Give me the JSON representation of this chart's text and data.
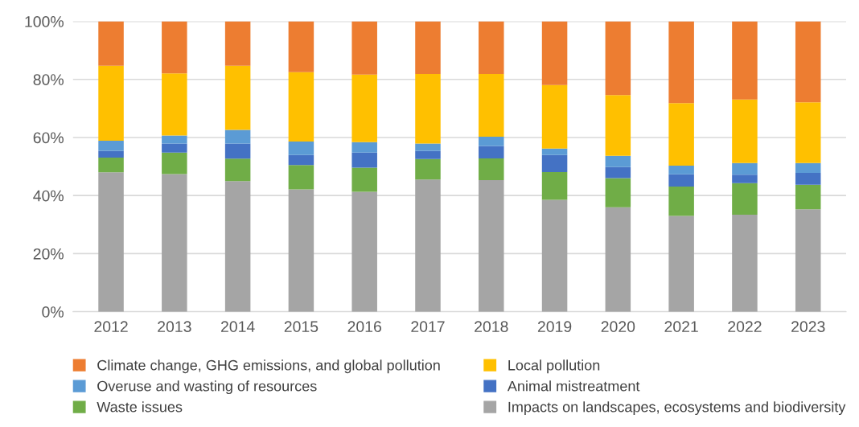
{
  "chart_data": {
    "type": "bar",
    "stacked": true,
    "categories": [
      "2012",
      "2013",
      "2014",
      "2015",
      "2016",
      "2017",
      "2018",
      "2019",
      "2020",
      "2021",
      "2022",
      "2023"
    ],
    "series": [
      {
        "name": "Impacts on landscapes, ecosystems and biodiversity",
        "color": "#a5a5a5",
        "values": [
          48.0,
          47.4,
          45.0,
          42.1,
          41.3,
          45.5,
          45.3,
          38.5,
          36.0,
          33.0,
          33.4,
          35.3
        ]
      },
      {
        "name": "Waste issues",
        "color": "#70ad47",
        "values": [
          5.1,
          7.4,
          7.7,
          8.4,
          8.3,
          7.1,
          7.5,
          9.6,
          10.0,
          10.1,
          10.9,
          8.4
        ]
      },
      {
        "name": "Animal mistreatment",
        "color": "#4472c4",
        "values": [
          2.3,
          3.1,
          5.2,
          3.5,
          5.2,
          2.8,
          4.3,
          5.9,
          3.8,
          4.2,
          2.9,
          4.1
        ]
      },
      {
        "name": "Overuse and wasting of resources",
        "color": "#5b9bd5",
        "values": [
          3.5,
          2.8,
          4.7,
          4.6,
          3.6,
          2.5,
          3.2,
          2.2,
          3.9,
          3.0,
          4.0,
          3.4
        ]
      },
      {
        "name": "Local pollution",
        "color": "#ffc000",
        "values": [
          25.8,
          21.4,
          22.1,
          23.9,
          23.3,
          24.0,
          21.6,
          21.9,
          20.9,
          21.5,
          21.9,
          20.9
        ]
      },
      {
        "name": "Climate change, GHG emissions, and global pollution",
        "color": "#ed7d31",
        "values": [
          15.3,
          17.9,
          15.3,
          17.5,
          18.3,
          18.1,
          18.1,
          21.9,
          25.4,
          28.2,
          26.9,
          27.9
        ]
      }
    ],
    "ylim": [
      0,
      100
    ],
    "yticks": [
      {
        "value": 0,
        "label": "0%"
      },
      {
        "value": 20,
        "label": "20%"
      },
      {
        "value": 40,
        "label": "40%"
      },
      {
        "value": 60,
        "label": "60%"
      },
      {
        "value": 80,
        "label": "80%"
      },
      {
        "value": 100,
        "label": "100%"
      }
    ],
    "grid": "y",
    "legend": "bottom"
  }
}
